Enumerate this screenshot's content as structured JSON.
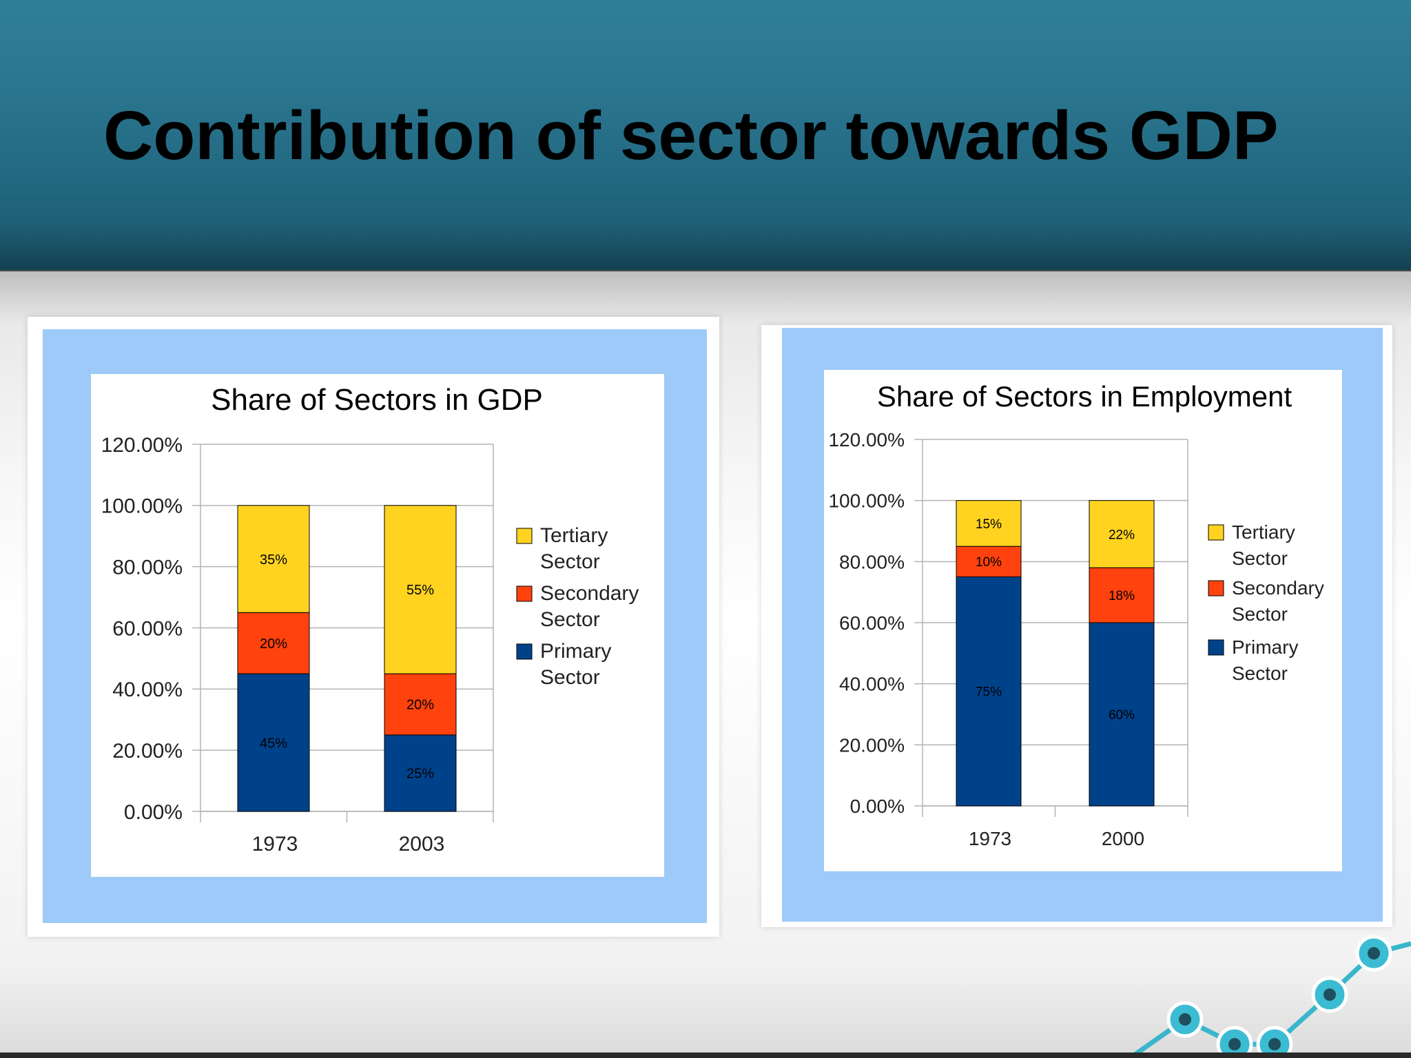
{
  "slide": {
    "title": "Contribution of sector towards GDP"
  },
  "colors": {
    "primary": "#00428a",
    "secondary": "#ff420e",
    "tertiary": "#ffd320",
    "panel_blue": "#9dcaf8",
    "header_teal": "#2b7690"
  },
  "chart_data": [
    {
      "type": "bar",
      "stacked": true,
      "title": "Share of Sectors in GDP",
      "categories": [
        "1973",
        "2003"
      ],
      "series": [
        {
          "name": "Primary Sector",
          "values": [
            45,
            25
          ],
          "labels": [
            "45%",
            "25%"
          ]
        },
        {
          "name": "Secondary Sector",
          "values": [
            20,
            20
          ],
          "labels": [
            "20%",
            "20%"
          ]
        },
        {
          "name": "Tertiary Sector",
          "values": [
            35,
            55
          ],
          "labels": [
            "35%",
            "55%"
          ]
        }
      ],
      "legend_order": [
        "Tertiary Sector",
        "Secondary Sector",
        "Primary Sector"
      ],
      "ylim": [
        0,
        120
      ],
      "yticks": [
        "0.00%",
        "20.00%",
        "40.00%",
        "60.00%",
        "80.00%",
        "100.00%",
        "120.00%"
      ],
      "grid": true,
      "legend_position": "right"
    },
    {
      "type": "bar",
      "stacked": true,
      "title": "Share of Sectors in Employment",
      "categories": [
        "1973",
        "2000"
      ],
      "series": [
        {
          "name": "Primary Sector",
          "values": [
            75,
            60
          ],
          "labels": [
            "75%",
            "60%"
          ]
        },
        {
          "name": "Secondary Sector",
          "values": [
            10,
            18
          ],
          "labels": [
            "10%",
            "18%"
          ]
        },
        {
          "name": "Tertiary Sector",
          "values": [
            15,
            22
          ],
          "labels": [
            "15%",
            "22%"
          ]
        }
      ],
      "legend_order": [
        "Tertiary Sector",
        "Secondary Sector",
        "Primary Sector"
      ],
      "ylim": [
        0,
        120
      ],
      "yticks": [
        "0.00%",
        "20.00%",
        "40.00%",
        "60.00%",
        "80.00%",
        "100.00%",
        "120.00%"
      ],
      "grid": true,
      "legend_position": "right"
    }
  ]
}
